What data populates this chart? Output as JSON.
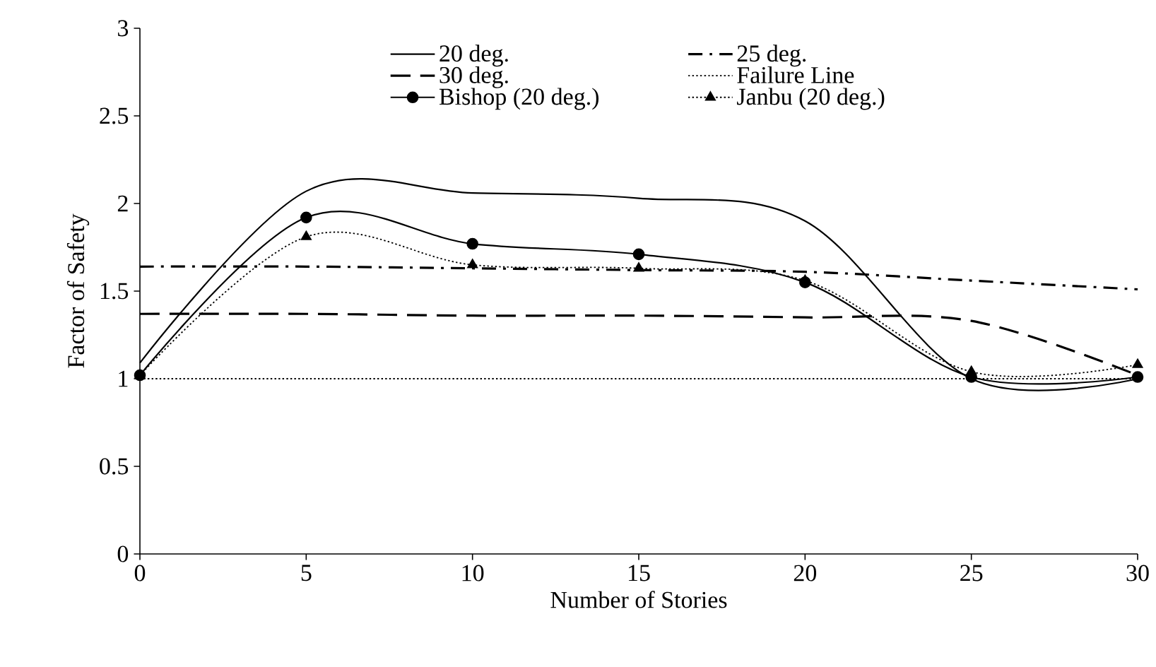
{
  "chart_data": {
    "type": "line",
    "xlabel": "Number of Stories",
    "ylabel": "Factor of Safety",
    "x": [
      0,
      5,
      10,
      15,
      20,
      25,
      30
    ],
    "series": [
      {
        "name": "20 deg.",
        "color": "#000000",
        "line_style": "solid",
        "marker": "none",
        "values": [
          1.09,
          2.07,
          2.06,
          2.03,
          1.9,
          1.0,
          1.0
        ]
      },
      {
        "name": "25 deg.",
        "color": "#000000",
        "line_style": "dashdot",
        "marker": "none",
        "values": [
          1.64,
          1.64,
          1.63,
          1.62,
          1.61,
          1.56,
          1.51
        ]
      },
      {
        "name": "30 deg.",
        "color": "#000000",
        "line_style": "dashed",
        "marker": "none",
        "values": [
          1.37,
          1.37,
          1.36,
          1.36,
          1.35,
          1.33,
          1.02
        ]
      },
      {
        "name": "Failure Line",
        "color": "#000000",
        "line_style": "dotted",
        "marker": "none",
        "values": [
          1,
          1,
          1,
          1,
          1,
          1,
          1
        ]
      },
      {
        "name": "Bishop (20 deg.)",
        "color": "#000000",
        "line_style": "solid",
        "marker": "circle",
        "values": [
          1.02,
          1.92,
          1.77,
          1.71,
          1.55,
          1.01,
          1.01
        ]
      },
      {
        "name": "Janbu (20 deg.)",
        "color": "#000000",
        "line_style": "dotted",
        "marker": "triangle",
        "values": [
          1.02,
          1.81,
          1.65,
          1.63,
          1.56,
          1.04,
          1.08
        ]
      }
    ],
    "xlim": [
      0,
      30
    ],
    "xticks": [
      0,
      5,
      10,
      15,
      20,
      25,
      30
    ],
    "ylim": [
      0,
      3
    ],
    "yticks": [
      0,
      0.5,
      1,
      1.5,
      2,
      2.5,
      3
    ],
    "grid": false,
    "legend": "top"
  }
}
